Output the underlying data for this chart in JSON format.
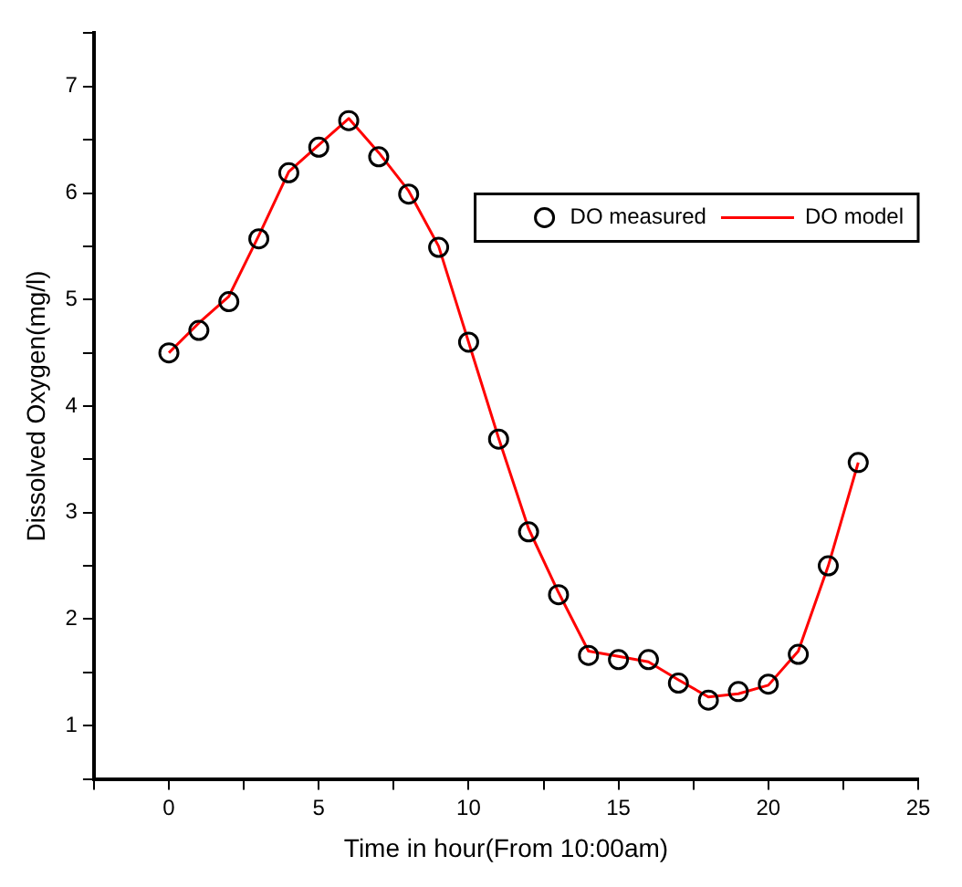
{
  "chart_data": {
    "type": "line",
    "xlabel": "Time in hour(From 10:00am)",
    "ylabel": "Dissolved Oxygen(mg/l)",
    "xlim": [
      -2.5,
      25
    ],
    "xticks": [
      {
        "value": -2.5,
        "label": null
      },
      0,
      {
        "value": 2.5,
        "label": null
      },
      5,
      {
        "value": 7.5,
        "label": null
      },
      10,
      {
        "value": 12.5,
        "label": null
      },
      15,
      {
        "value": 17.5,
        "label": null
      },
      20,
      {
        "value": 22.5,
        "label": null
      },
      25
    ],
    "ylim": [
      0.5,
      7.5
    ],
    "yticks": [
      {
        "value": 0.5,
        "label": null
      },
      1,
      {
        "value": 1.5,
        "label": null
      },
      2,
      {
        "value": 2.5,
        "label": null
      },
      3,
      {
        "value": 3.5,
        "label": null
      },
      4,
      {
        "value": 4.5,
        "label": null
      },
      5,
      {
        "value": 5.5,
        "label": null
      },
      6,
      {
        "value": 6.5,
        "label": null
      },
      7,
      {
        "value": 7.5,
        "label": null
      }
    ],
    "grid": false,
    "legend": "top right",
    "x": [
      0,
      1,
      2,
      3,
      4,
      5,
      6,
      7,
      8,
      9,
      10,
      11,
      12,
      13,
      14,
      15,
      16,
      17,
      18,
      19,
      20,
      21,
      22,
      23
    ],
    "series": [
      {
        "name": "DO measured",
        "type": "scatter",
        "color": "#000000",
        "marker": "circle",
        "values": [
          4.5,
          4.71,
          4.98,
          5.57,
          6.19,
          6.43,
          6.68,
          6.34,
          5.99,
          5.49,
          4.6,
          3.69,
          2.82,
          2.23,
          1.66,
          1.62,
          1.62,
          1.4,
          1.24,
          1.32,
          1.39,
          1.67,
          2.5,
          3.47
        ]
      },
      {
        "name": "DO model",
        "color": "#ff0000",
        "marker": "none",
        "line_style": "solid",
        "values": [
          4.5,
          4.78,
          5.03,
          5.6,
          6.2,
          6.45,
          6.7,
          6.38,
          6.02,
          5.5,
          4.6,
          3.7,
          2.85,
          2.25,
          1.7,
          1.65,
          1.6,
          1.43,
          1.27,
          1.3,
          1.38,
          1.7,
          2.5,
          3.47
        ]
      }
    ]
  }
}
